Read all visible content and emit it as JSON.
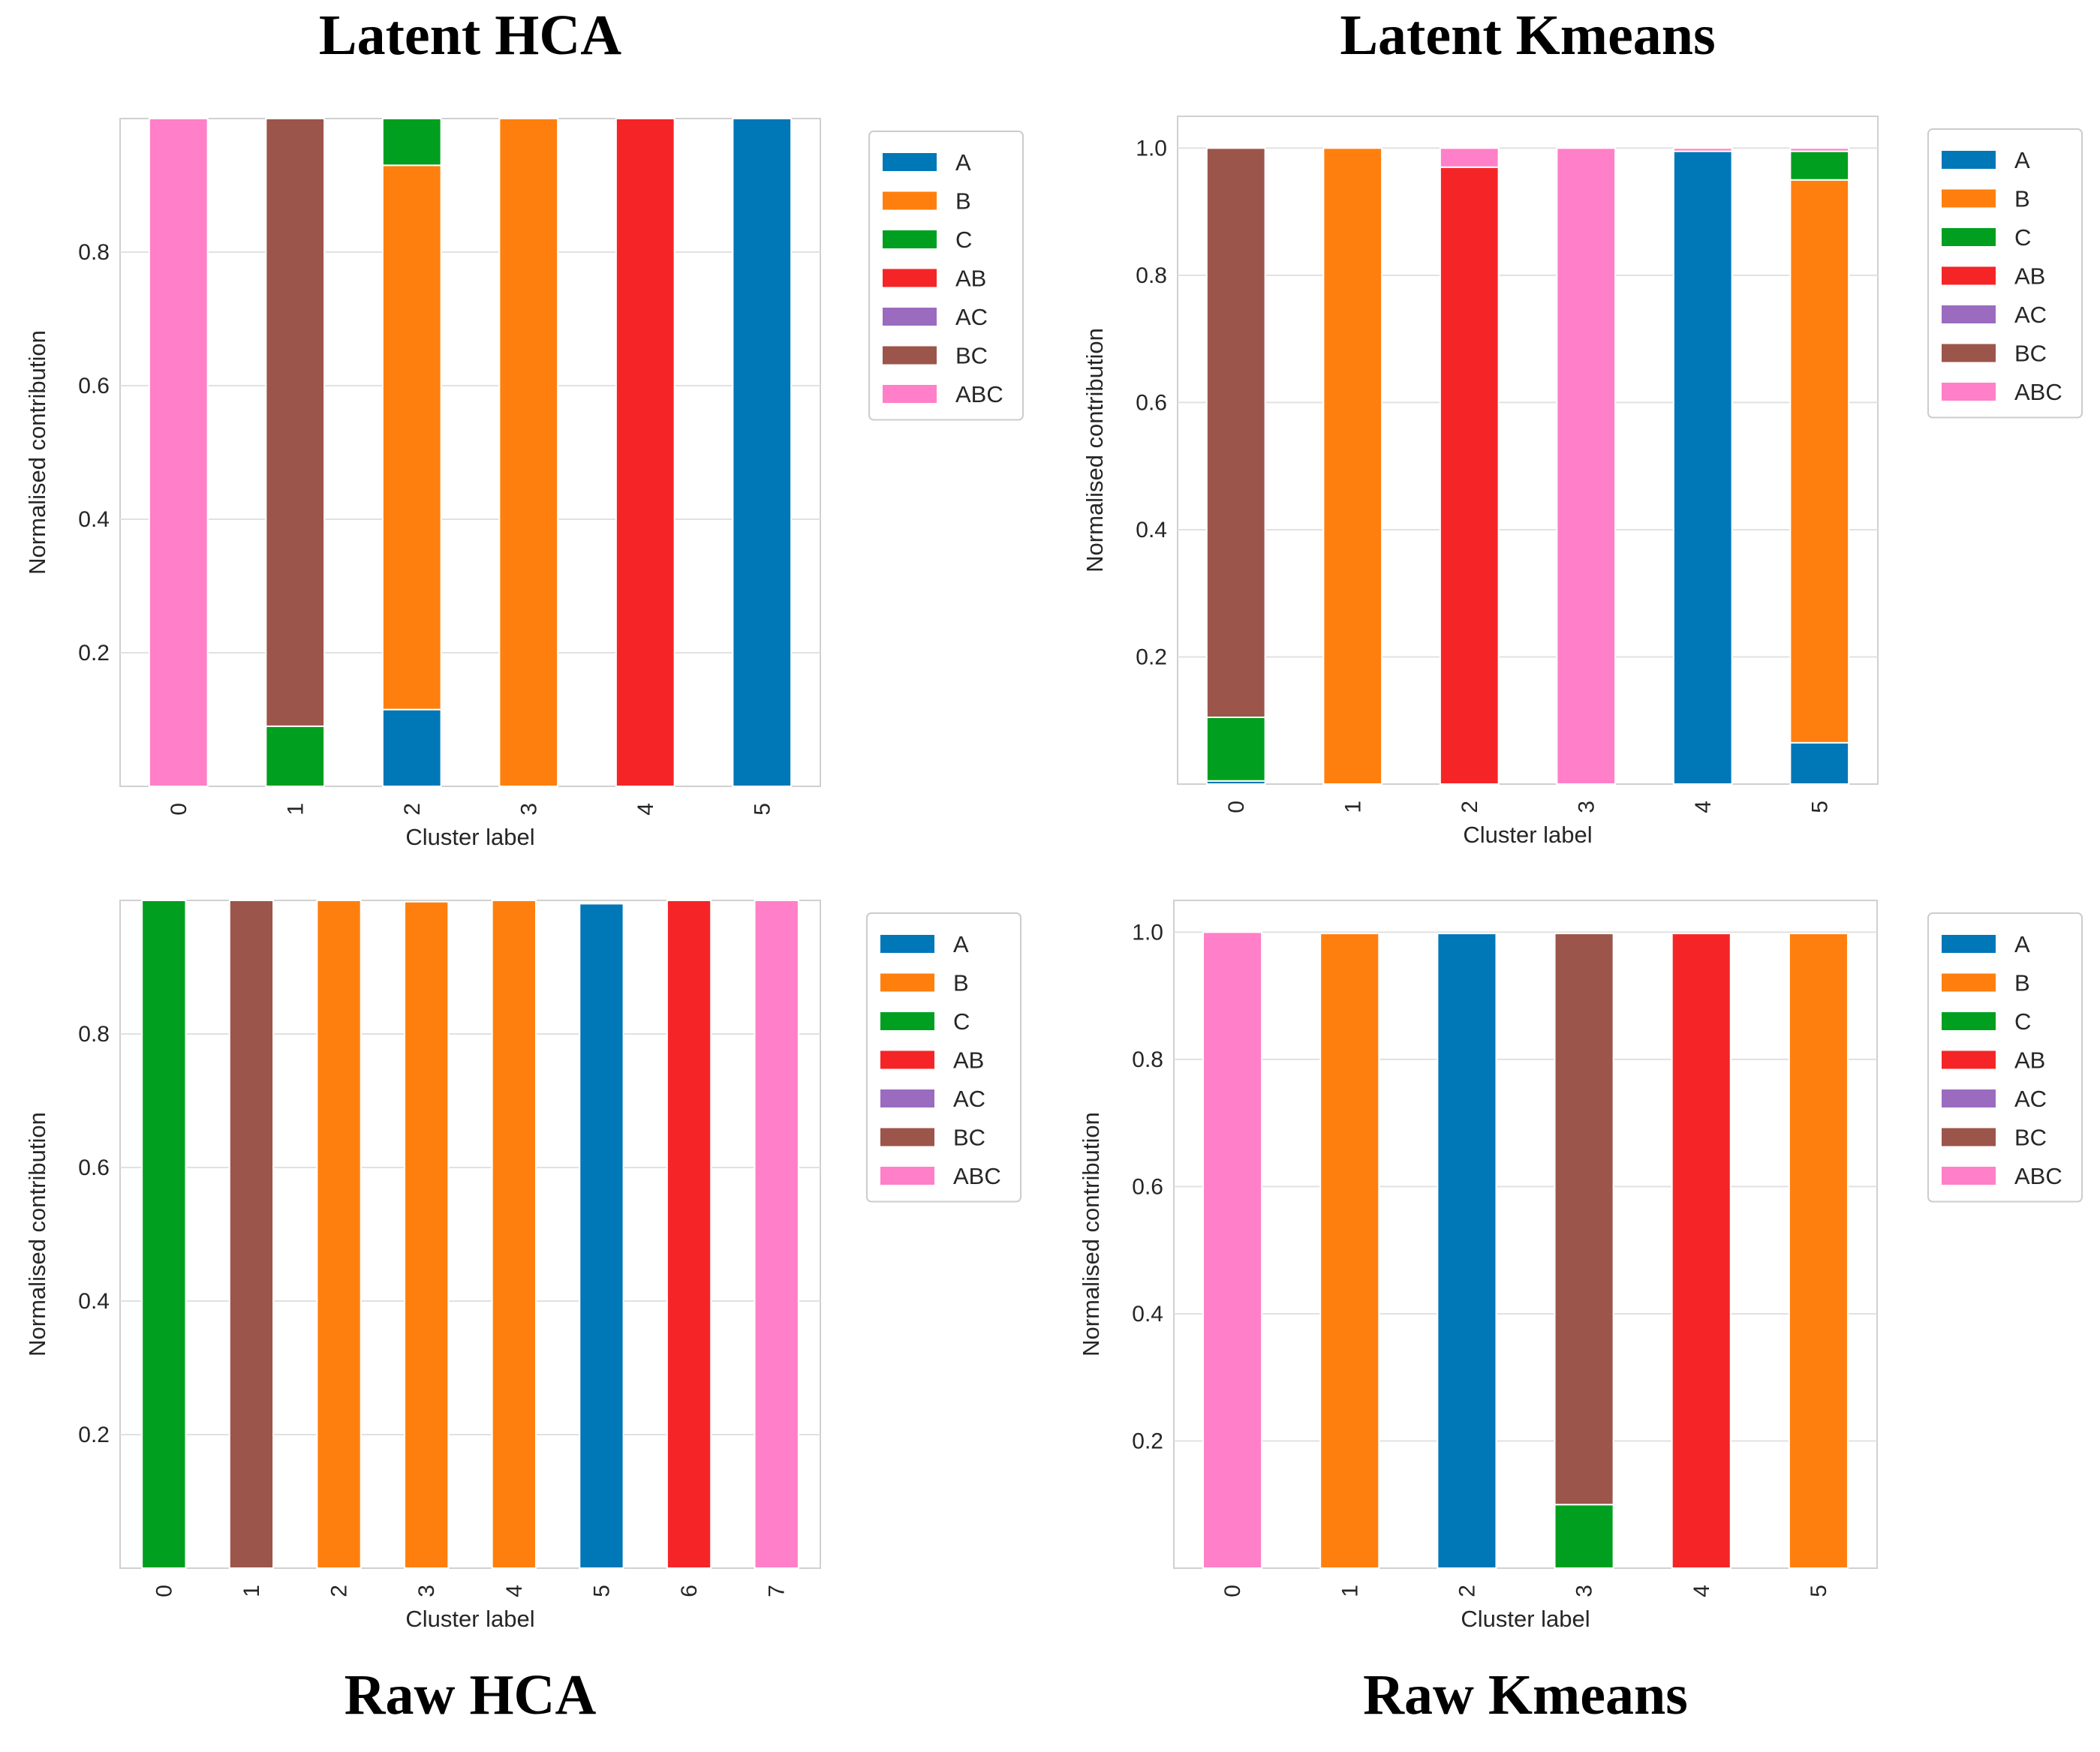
{
  "figure": {
    "colors": {
      "A": "#0077b7",
      "B": "#ff7f0e",
      "C": "#009f1f",
      "AB": "#f52527",
      "AC": "#9a6bbf",
      "BC": "#9c554a",
      "ABC": "#ff7fc8"
    }
  },
  "chart_data": [
    {
      "id": "latent-hca",
      "type": "bar",
      "stacked": true,
      "title": "Latent HCA",
      "xlabel": "Cluster label",
      "ylabel": "Normalised contribution",
      "ylim": [
        0,
        1.0
      ],
      "yticks": [
        "0.2",
        "0.4",
        "0.6",
        "0.8"
      ],
      "categories": [
        "0",
        "1",
        "2",
        "3",
        "4",
        "5"
      ],
      "legend": [
        "A",
        "B",
        "C",
        "AB",
        "AC",
        "BC",
        "ABC"
      ],
      "series": [
        {
          "name": "A",
          "values": [
            0,
            0,
            0.115,
            0,
            0,
            1.0
          ]
        },
        {
          "name": "B",
          "values": [
            0,
            0,
            0.815,
            1.0,
            0,
            0
          ]
        },
        {
          "name": "C",
          "values": [
            0,
            0.09,
            0.07,
            0,
            0,
            0
          ]
        },
        {
          "name": "AB",
          "values": [
            0,
            0,
            0,
            0,
            1.0,
            0
          ]
        },
        {
          "name": "AC",
          "values": [
            0,
            0,
            0,
            0,
            0,
            0
          ]
        },
        {
          "name": "BC",
          "values": [
            0,
            0.91,
            0,
            0,
            0,
            0
          ]
        },
        {
          "name": "ABC",
          "values": [
            1.0,
            0,
            0,
            0,
            0,
            0
          ]
        }
      ]
    },
    {
      "id": "latent-kmeans",
      "type": "bar",
      "stacked": true,
      "title": "Latent Kmeans",
      "xlabel": "Cluster label",
      "ylabel": "Normalised contribution",
      "ylim": [
        0,
        1.05
      ],
      "yticks": [
        "0.2",
        "0.4",
        "0.6",
        "0.8",
        "1.0"
      ],
      "categories": [
        "0",
        "1",
        "2",
        "3",
        "4",
        "5"
      ],
      "legend": [
        "A",
        "B",
        "C",
        "AB",
        "AC",
        "BC",
        "ABC"
      ],
      "series": [
        {
          "name": "A",
          "values": [
            0.005,
            0,
            0,
            0,
            0.995,
            0.065
          ]
        },
        {
          "name": "B",
          "values": [
            0,
            1.0,
            0,
            0,
            0,
            0.885
          ]
        },
        {
          "name": "C",
          "values": [
            0.1,
            0,
            0,
            0,
            0,
            0.045
          ]
        },
        {
          "name": "AB",
          "values": [
            0,
            0,
            0.97,
            0,
            0,
            0
          ]
        },
        {
          "name": "AC",
          "values": [
            0,
            0,
            0,
            0,
            0,
            0
          ]
        },
        {
          "name": "BC",
          "values": [
            0.895,
            0,
            0,
            0,
            0,
            0
          ]
        },
        {
          "name": "ABC",
          "values": [
            0,
            0,
            0.03,
            1.0,
            0.005,
            0.005
          ]
        }
      ]
    },
    {
      "id": "raw-hca",
      "type": "bar",
      "stacked": true,
      "title": "Raw HCA",
      "xlabel": "Cluster label",
      "ylabel": "Normalised contribution",
      "ylim": [
        0,
        1.0
      ],
      "yticks": [
        "0.2",
        "0.4",
        "0.6",
        "0.8"
      ],
      "categories": [
        "0",
        "1",
        "2",
        "3",
        "4",
        "5",
        "6",
        "7"
      ],
      "legend": [
        "A",
        "B",
        "C",
        "AB",
        "AC",
        "BC",
        "ABC"
      ],
      "series": [
        {
          "name": "A",
          "values": [
            0,
            0,
            0,
            0,
            0,
            0.995,
            0,
            0
          ]
        },
        {
          "name": "B",
          "values": [
            0,
            0,
            1.0,
            0.998,
            1.0,
            0,
            0,
            0
          ]
        },
        {
          "name": "C",
          "values": [
            1.0,
            0,
            0,
            0,
            0,
            0,
            0,
            0
          ]
        },
        {
          "name": "AB",
          "values": [
            0,
            0,
            0,
            0,
            0,
            0,
            1.0,
            0
          ]
        },
        {
          "name": "AC",
          "values": [
            0,
            0,
            0,
            0,
            0,
            0,
            0,
            0
          ]
        },
        {
          "name": "BC",
          "values": [
            0,
            1.0,
            0,
            0,
            0,
            0,
            0,
            0
          ]
        },
        {
          "name": "ABC",
          "values": [
            0,
            0,
            0,
            0,
            0,
            0,
            0,
            1.0
          ]
        }
      ]
    },
    {
      "id": "raw-kmeans",
      "type": "bar",
      "stacked": true,
      "title": "Raw Kmeans",
      "xlabel": "Cluster label",
      "ylabel": "Normalised contribution",
      "ylim": [
        0,
        1.05
      ],
      "yticks": [
        "0.2",
        "0.4",
        "0.6",
        "0.8",
        "1.0"
      ],
      "categories": [
        "0",
        "1",
        "2",
        "3",
        "4",
        "5"
      ],
      "legend": [
        "A",
        "B",
        "C",
        "AB",
        "AC",
        "BC",
        "ABC"
      ],
      "series": [
        {
          "name": "A",
          "values": [
            0,
            0,
            0.998,
            0,
            0,
            0
          ]
        },
        {
          "name": "B",
          "values": [
            0,
            0.998,
            0,
            0,
            0,
            0.998
          ]
        },
        {
          "name": "C",
          "values": [
            0,
            0,
            0,
            0.1,
            0,
            0
          ]
        },
        {
          "name": "AB",
          "values": [
            0,
            0,
            0,
            0,
            0.998,
            0
          ]
        },
        {
          "name": "AC",
          "values": [
            0,
            0,
            0,
            0,
            0,
            0
          ]
        },
        {
          "name": "BC",
          "values": [
            0,
            0,
            0,
            0.898,
            0,
            0
          ]
        },
        {
          "name": "ABC",
          "values": [
            1.0,
            0,
            0,
            0,
            0,
            0
          ]
        }
      ]
    }
  ]
}
